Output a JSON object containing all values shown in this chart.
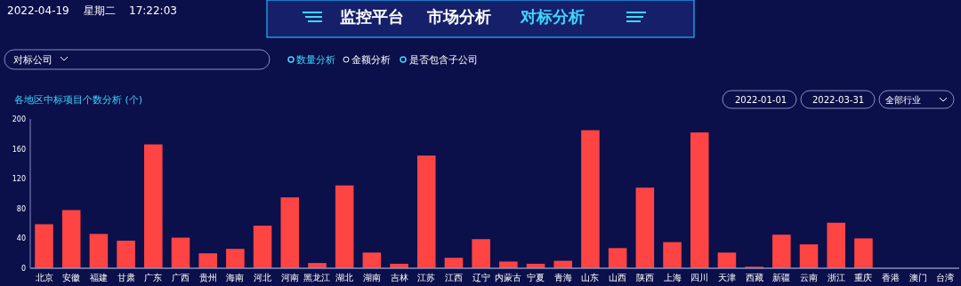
{
  "chart_data": {
    "type": "bar",
    "title": "各地区中标项目个数分析 (个)",
    "categories": [
      "北京",
      "安徽",
      "福建",
      "甘肃",
      "广东",
      "广西",
      "贵州",
      "海南",
      "河北",
      "河南",
      "黑龙江",
      "湖北",
      "湖南",
      "吉林",
      "江苏",
      "江西",
      "辽宁",
      "内蒙古",
      "宁夏",
      "青海",
      "山东",
      "山西",
      "陕西",
      "上海",
      "四川",
      "天津",
      "西藏",
      "新疆",
      "云南",
      "浙江",
      "重庆",
      "香港",
      "澳门",
      "台湾"
    ],
    "values": [
      59,
      78,
      46,
      37,
      166,
      41,
      20,
      26,
      57,
      95,
      7,
      111,
      21,
      6,
      151,
      14,
      39,
      9,
      6,
      10,
      185,
      27,
      108,
      35,
      182,
      21,
      2,
      45,
      32,
      61,
      40,
      0,
      0,
      0
    ],
    "color": "#ff4444",
    "ylim": [
      0,
      200
    ],
    "yticks": [
      0,
      40,
      80,
      120,
      160,
      200
    ],
    "grid": false,
    "annotations": [
      "2022-04-19",
      "星期二",
      "17:22:03",
      "监控平台",
      "市场分析",
      "对标分析",
      "对标公司",
      "数量分析",
      "金额分析",
      "是否包含子公司",
      "2022-01-01",
      "2022-03-31",
      "全部行业"
    ]
  }
}
